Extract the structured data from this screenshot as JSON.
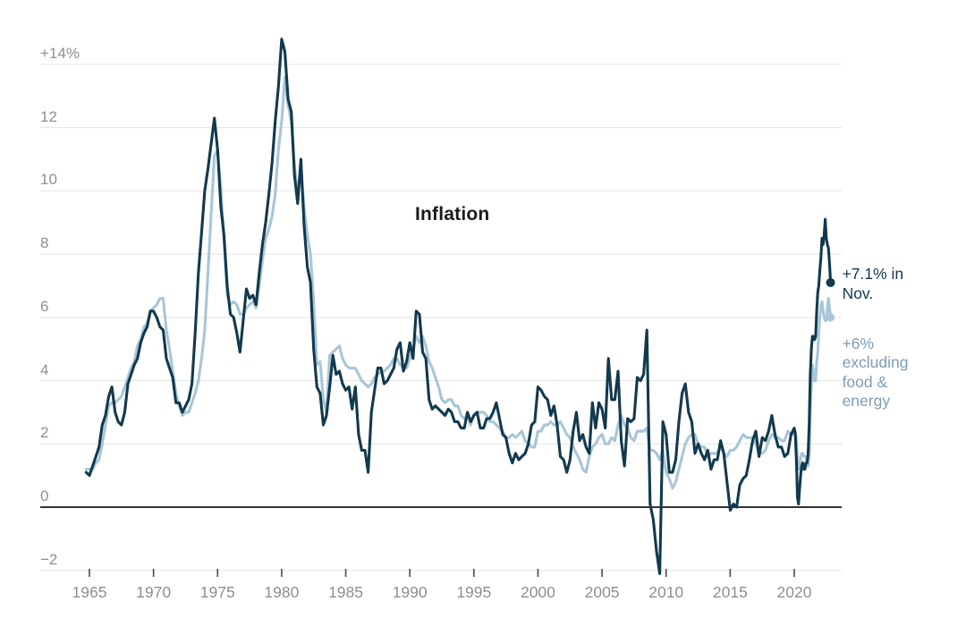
{
  "chart_data": {
    "type": "line",
    "title": "Inflation",
    "grid": true,
    "xlim": [
      1964.75,
      2023.7
    ],
    "ylim": [
      -2.5,
      14.8
    ],
    "y_axis": {
      "unit": "percent",
      "ticks": [
        {
          "label": "+14%",
          "value": 14
        },
        {
          "label": "12",
          "value": 12
        },
        {
          "label": "10",
          "value": 10
        },
        {
          "label": "8",
          "value": 8
        },
        {
          "label": "6",
          "value": 6
        },
        {
          "label": "4",
          "value": 4
        },
        {
          "label": "2",
          "value": 2
        },
        {
          "label": "0",
          "value": 0
        },
        {
          "label": "−2",
          "value": -2
        }
      ]
    },
    "x_axis": {
      "ticks": [
        {
          "label": "1965",
          "value": 1965
        },
        {
          "label": "1970",
          "value": 1970
        },
        {
          "label": "1975",
          "value": 1975
        },
        {
          "label": "1980",
          "value": 1980
        },
        {
          "label": "1985",
          "value": 1985
        },
        {
          "label": "1990",
          "value": 1990
        },
        {
          "label": "1995",
          "value": 1995
        },
        {
          "label": "2000",
          "value": 2000
        },
        {
          "label": "2005",
          "value": 2005
        },
        {
          "label": "2010",
          "value": 2010
        },
        {
          "label": "2015",
          "value": 2015
        },
        {
          "label": "2020",
          "value": 2020
        }
      ]
    },
    "colors": {
      "headline_line": "#12394E",
      "core_line": "#A8C6D7",
      "gridline": "#E4E4E4",
      "zero_line": "#333333",
      "tick": "#4A4A4A",
      "axis_label": "#8F8F8F",
      "title": "#1A1A1A",
      "headline_annotation": "#12394E",
      "core_annotation": "#7C9DB2"
    },
    "series": [
      {
        "name": "core-cpi-excluding-food-energy",
        "color": "#A8C6D7",
        "width": 3.1,
        "end_dot_radius": 4.5,
        "segments": [
          {
            "start": 1964.75,
            "step": 0.25,
            "values": [
              1.2,
              1.2,
              1.2,
              1.4,
              1.5,
              2.0,
              2.6,
              3.2,
              3.3,
              3.3,
              3.4,
              3.5,
              3.8,
              4.1,
              4.4,
              4.6,
              5.1,
              5.3,
              5.7,
              5.8,
              6.2,
              6.3,
              6.4,
              6.6,
              6.6,
              5.6,
              5.0,
              4.3,
              3.6,
              3.2,
              2.9,
              3.0,
              3.0,
              3.3,
              3.6,
              4.0,
              4.7,
              5.6,
              7.4,
              9.3,
              11.1,
              11.3,
              10.1,
              8.5,
              6.7,
              6.4,
              6.5,
              6.4,
              6.1,
              6.1,
              6.3,
              6.4,
              6.5,
              6.3,
              7.0,
              7.8,
              8.5,
              8.8,
              9.2,
              9.9,
              11.3,
              12.2,
              13.6,
              12.7,
              12.2,
              10.8,
              9.9,
              10.7,
              9.5,
              8.6,
              8.0,
              6.5,
              4.5,
              4.6,
              3.4,
              3.0,
              4.8,
              4.9,
              5.0,
              5.1,
              4.7,
              4.5,
              4.4,
              4.4,
              4.4,
              4.2,
              4.0,
              3.9,
              3.8,
              3.9,
              4.1,
              4.2,
              4.3,
              4.3,
              4.4,
              4.5,
              4.7,
              4.7,
              4.5,
              4.4,
              4.4,
              4.7,
              5.0,
              5.4,
              5.2,
              5.4,
              5.1,
              4.6,
              4.4,
              4.1,
              3.8,
              3.4,
              3.3,
              3.4,
              3.4,
              3.2,
              3.2,
              2.9,
              2.8,
              2.9,
              2.6,
              2.9,
              3.0,
              3.0,
              3.0,
              2.9,
              2.7,
              2.7,
              2.6,
              2.5,
              2.4,
              2.2,
              2.2,
              2.3,
              2.2,
              2.3,
              2.4,
              2.1,
              2.0,
              1.9,
              1.9,
              2.4,
              2.4,
              2.6,
              2.6,
              2.7,
              2.6,
              2.6,
              2.7,
              2.5,
              2.3,
              2.2,
              1.9,
              1.7,
              1.5,
              1.2,
              1.1,
              1.6,
              1.9,
              2.0,
              2.2,
              2.3,
              2.0,
              2.0,
              2.2,
              2.1,
              2.6,
              2.9,
              2.6,
              2.5,
              2.2,
              2.1,
              2.4,
              2.4,
              2.4,
              2.5,
              1.8,
              1.8,
              1.7,
              1.5,
              1.8,
              1.1,
              0.9,
              0.6,
              0.8,
              1.2,
              1.6,
              2.0,
              2.2,
              2.3,
              2.3,
              2.0,
              1.9,
              1.9,
              1.6,
              1.7,
              1.7,
              1.7,
              1.9,
              1.7,
              1.6,
              1.8,
              1.8,
              1.9,
              2.1,
              2.3,
              2.2,
              2.2,
              2.2,
              2.0,
              1.7,
              1.7,
              1.8,
              2.1,
              2.3,
              2.2,
              2.2,
              2.1,
              2.1,
              2.4,
              2.3
            ]
          },
          {
            "start": 2020.0,
            "step": 0.083333,
            "values": [
              2.3,
              2.4,
              2.1,
              1.4,
              1.2,
              1.2,
              1.6,
              1.7,
              1.7,
              1.6,
              1.6,
              1.6,
              1.4,
              1.3,
              1.6,
              3.0,
              3.8,
              4.5,
              4.3,
              4.0,
              4.0,
              4.6,
              4.9,
              5.5,
              6.0,
              6.4,
              6.5,
              6.2,
              6.0,
              5.9,
              5.9,
              6.3,
              6.6,
              6.3,
              6.0
            ]
          }
        ]
      },
      {
        "name": "headline-cpi-inflation",
        "color": "#12394E",
        "width": 3.1,
        "end_dot_radius": 5,
        "segments": [
          {
            "start": 1964.75,
            "step": 0.25,
            "values": [
              1.1,
              1.0,
              1.3,
              1.6,
              1.9,
              2.6,
              2.9,
              3.5,
              3.8,
              3.0,
              2.7,
              2.6,
              3.0,
              3.9,
              4.2,
              4.5,
              4.7,
              5.2,
              5.5,
              5.7,
              6.2,
              6.2,
              6.0,
              5.7,
              5.6,
              4.7,
              4.4,
              4.1,
              3.3,
              3.3,
              3.0,
              3.2,
              3.4,
              3.9,
              5.5,
              7.4,
              8.7,
              10.0,
              10.7,
              11.5,
              12.3,
              11.3,
              9.5,
              8.6,
              7.0,
              6.1,
              6.0,
              5.5,
              4.9,
              5.9,
              6.9,
              6.6,
              6.7,
              6.4,
              7.4,
              8.3,
              9.0,
              9.9,
              10.9,
              12.2,
              13.3,
              14.8,
              14.4,
              12.9,
              12.5,
              10.5,
              9.6,
              11.0,
              8.9,
              7.6,
              7.1,
              5.0,
              3.8,
              3.6,
              2.6,
              2.9,
              3.8,
              4.8,
              4.2,
              4.3,
              3.9,
              3.7,
              3.8,
              3.1,
              3.8,
              2.3,
              1.8,
              1.8,
              1.1,
              3.0,
              3.7,
              4.4,
              4.4,
              3.9,
              4.0,
              4.2,
              4.4,
              5.0,
              5.2,
              4.3,
              4.6,
              5.2,
              4.7,
              6.2,
              6.1,
              4.9,
              4.7,
              3.4,
              3.1,
              3.2,
              3.1,
              3.0,
              2.9,
              3.1,
              3.0,
              2.7,
              2.7,
              2.5,
              2.5,
              3.0,
              2.7,
              2.9,
              3.0,
              2.5,
              2.5,
              2.8,
              2.8,
              3.0,
              3.3,
              2.8,
              2.3,
              2.2,
              1.7,
              1.4,
              1.7,
              1.5,
              1.6,
              1.7,
              2.0,
              2.6,
              2.7,
              3.8,
              3.7,
              3.5,
              3.4,
              2.9,
              3.2,
              2.6,
              1.6,
              1.5,
              1.1,
              1.5,
              2.4,
              3.0,
              2.1,
              2.3,
              1.9,
              1.7,
              3.3,
              2.5,
              3.3,
              3.1,
              2.5,
              4.7,
              3.4,
              3.4,
              4.3,
              2.1,
              1.3,
              2.8,
              2.7,
              2.8,
              4.1,
              4.0,
              4.2,
              5.6,
              0.1,
              -0.4,
              -1.4,
              -2.1,
              2.7,
              2.3,
              1.1,
              1.1,
              1.5,
              2.7,
              3.6,
              3.9,
              3.0,
              2.7,
              1.7,
              2.0,
              1.7,
              1.5,
              1.8,
              1.2,
              1.5,
              1.5,
              2.1,
              1.7,
              0.8,
              -0.1,
              0.1,
              0.0,
              0.7,
              0.9,
              1.0,
              1.5,
              2.1,
              2.4,
              1.6,
              2.2,
              2.1,
              2.4,
              2.9,
              2.3,
              1.9,
              1.9,
              1.6,
              1.7,
              2.3
            ]
          },
          {
            "start": 2020.0,
            "step": 0.083333,
            "values": [
              2.5,
              2.3,
              1.5,
              0.3,
              0.1,
              0.6,
              1.0,
              1.3,
              1.4,
              1.2,
              1.2,
              1.4,
              1.4,
              1.7,
              2.6,
              4.2,
              5.0,
              5.4,
              5.4,
              5.3,
              5.4,
              6.2,
              6.8,
              7.0,
              7.5,
              7.9,
              8.5,
              8.3,
              8.6,
              9.1,
              8.5,
              8.3,
              8.2,
              7.7,
              7.1
            ]
          }
        ]
      }
    ],
    "annotations": [
      {
        "name": "headline-latest-annotation",
        "series": "headline-cpi-inflation",
        "lines": [
          "+7.1% in",
          "Nov."
        ],
        "color": "#12394E",
        "latest_value": 7.1,
        "latest_period": "Nov."
      },
      {
        "name": "core-latest-annotation",
        "series": "core-cpi-excluding-food-energy",
        "lines": [
          "+6%",
          "excluding",
          "food &",
          "energy"
        ],
        "color": "#7C9DB2",
        "latest_value": 6.0
      }
    ]
  }
}
